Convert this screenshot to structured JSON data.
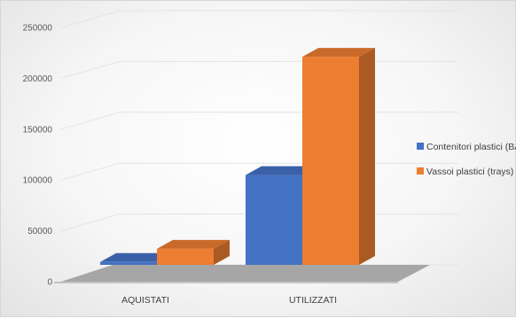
{
  "chart_data": {
    "type": "bar",
    "style": "3d-clustered-column",
    "categories": [
      "AQUISTATI",
      "UTILIZZATI"
    ],
    "series": [
      {
        "name": "Contenitori plastici (BAC)",
        "values": [
          3000,
          95000
        ],
        "color": "#4472C4"
      },
      {
        "name": "Vassoi plastici (trays)",
        "values": [
          17000,
          220000
        ],
        "color": "#ED7D31"
      }
    ],
    "y_ticks": [
      "250000",
      "200000",
      "150000",
      "100000",
      "50000",
      "0"
    ],
    "ylim": [
      0,
      250000
    ],
    "grid": true,
    "legend_position": "right",
    "title": "",
    "xlabel": "",
    "ylabel": ""
  }
}
